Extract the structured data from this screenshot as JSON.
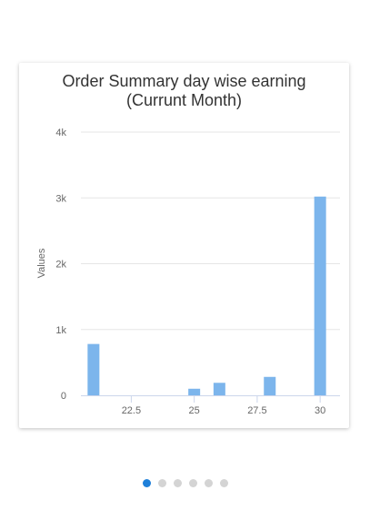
{
  "chart_data": {
    "type": "bar",
    "title": "Order Summary day wise earning",
    "subtitle": "(Currunt Month)",
    "xlabel": "",
    "ylabel": "Values",
    "x": [
      21,
      25,
      26,
      28,
      30
    ],
    "values": [
      780,
      100,
      190,
      280,
      3020
    ],
    "xlim": [
      20.5,
      30.5
    ],
    "ylim": [
      0,
      4000
    ],
    "xticks": [
      22.5,
      25,
      27.5,
      30
    ],
    "xtick_labels": [
      "22.5",
      "25",
      "27.5",
      "30"
    ],
    "yticks": [
      0,
      1000,
      2000,
      3000,
      4000
    ],
    "ytick_labels": [
      "0",
      "1k",
      "2k",
      "3k",
      "4k"
    ],
    "grid": true,
    "legend": "none",
    "color": "#7cb5ec"
  },
  "pager": {
    "count": 6,
    "active_index": 0,
    "active_color": "#1e7fd9",
    "inactive_color": "#d4d4d4"
  }
}
